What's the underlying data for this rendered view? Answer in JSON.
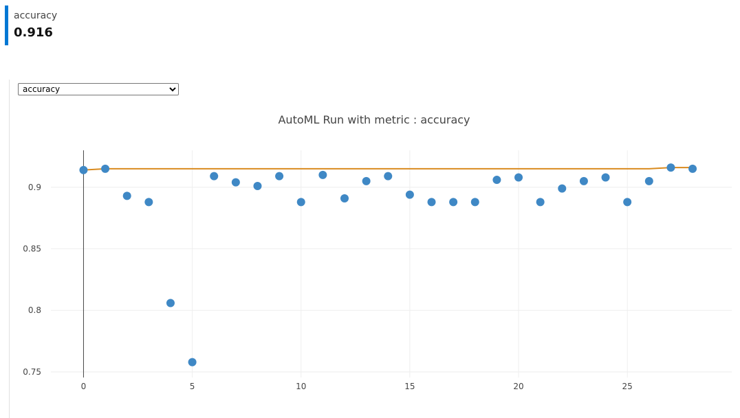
{
  "metric_card": {
    "label": "accuracy",
    "value": "0.916"
  },
  "selector": {
    "selected": "accuracy"
  },
  "chart_data": {
    "type": "scatter",
    "title": "AutoML Run with metric : accuracy",
    "xlabel": "",
    "ylabel": "",
    "xlim": [
      -1.5,
      29.8
    ],
    "ylim": [
      0.7455,
      0.93
    ],
    "x_ticks": [
      0,
      5,
      10,
      15,
      20,
      25
    ],
    "y_ticks": [
      0.75,
      0.8,
      0.85,
      0.9
    ],
    "y_tick_labels": [
      "0.75",
      "0.8",
      "0.85",
      "0.9"
    ],
    "grid": true,
    "series": [
      {
        "type": "scatter",
        "color": "#3f88c5",
        "x": [
          0,
          1,
          2,
          3,
          4,
          5,
          6,
          7,
          8,
          9,
          10,
          11,
          12,
          13,
          14,
          15,
          16,
          17,
          18,
          19,
          20,
          21,
          22,
          23,
          24,
          25,
          26,
          27,
          28
        ],
        "y": [
          0.914,
          0.915,
          0.893,
          0.888,
          0.806,
          0.758,
          0.909,
          0.904,
          0.901,
          0.909,
          0.888,
          0.91,
          0.891,
          0.905,
          0.909,
          0.894,
          0.888,
          0.888,
          0.888,
          0.906,
          0.908,
          0.888,
          0.899,
          0.905,
          0.908,
          0.888,
          0.905,
          0.916,
          0.915
        ]
      },
      {
        "type": "line",
        "color": "#d98a1e",
        "x": [
          0,
          1,
          2,
          3,
          4,
          5,
          6,
          7,
          8,
          9,
          10,
          11,
          12,
          13,
          14,
          15,
          16,
          17,
          18,
          19,
          20,
          21,
          22,
          23,
          24,
          25,
          26,
          27,
          28
        ],
        "y": [
          0.914,
          0.915,
          0.915,
          0.915,
          0.915,
          0.915,
          0.915,
          0.915,
          0.915,
          0.915,
          0.915,
          0.915,
          0.915,
          0.915,
          0.915,
          0.915,
          0.915,
          0.915,
          0.915,
          0.915,
          0.915,
          0.915,
          0.915,
          0.915,
          0.915,
          0.915,
          0.915,
          0.916,
          0.916
        ]
      }
    ]
  }
}
